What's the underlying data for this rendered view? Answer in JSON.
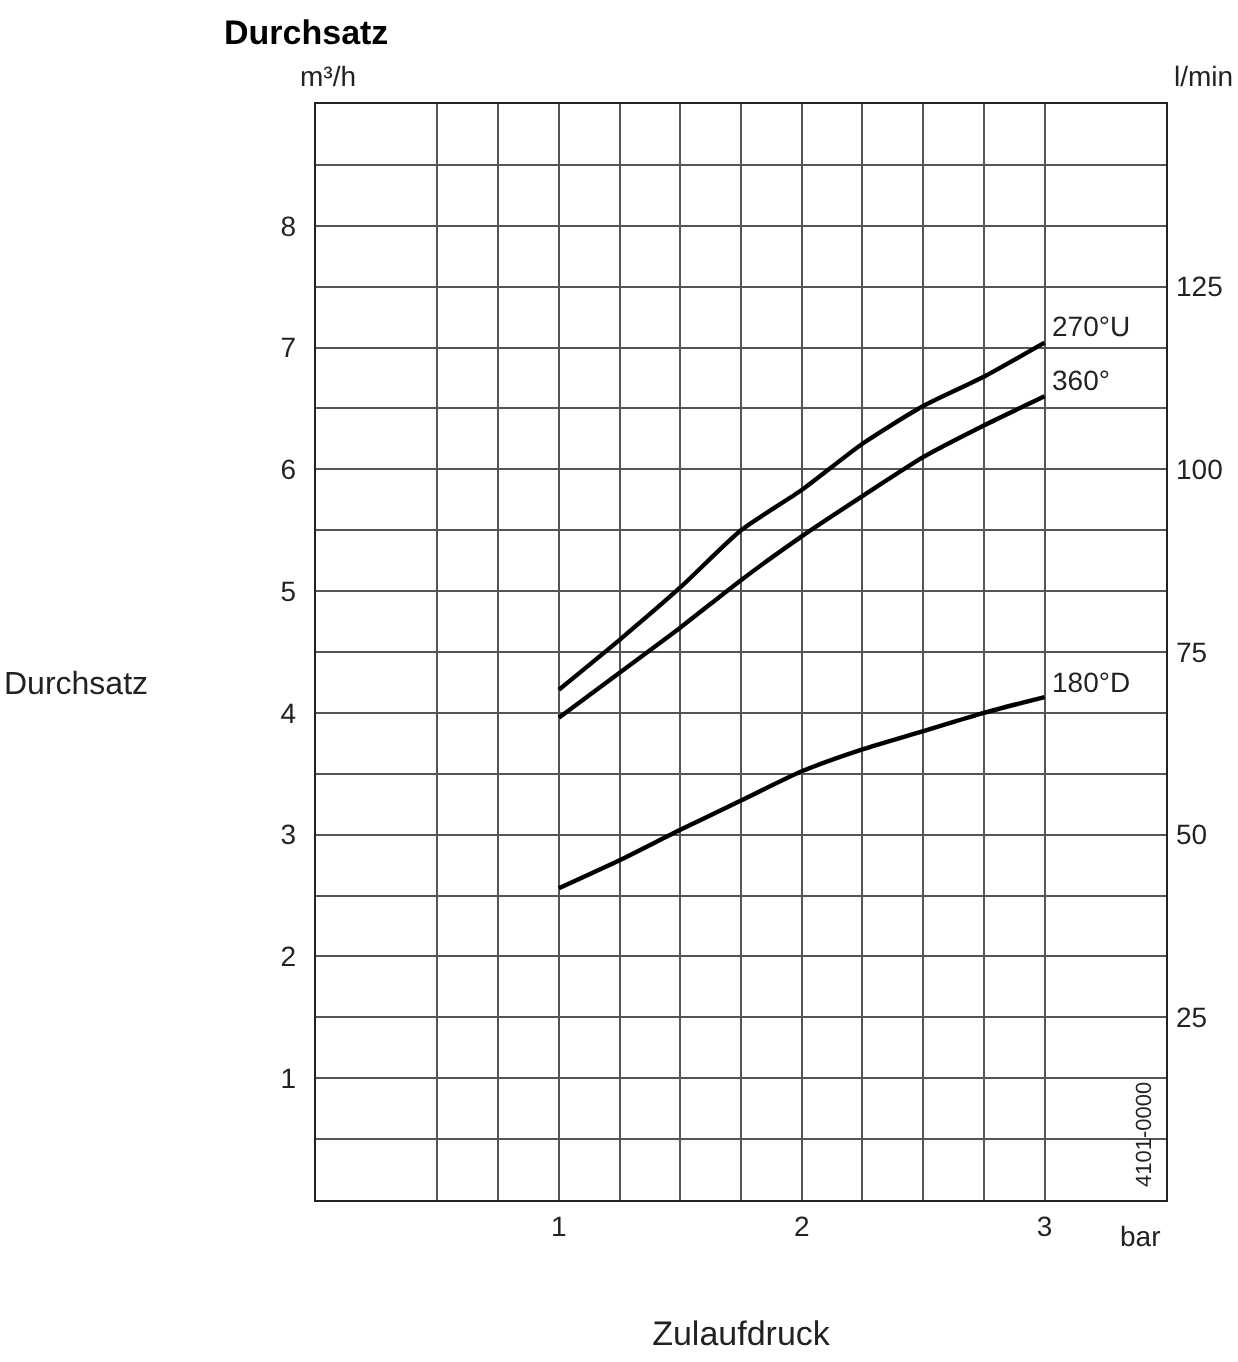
{
  "chart_data": {
    "type": "line",
    "title": "Durchsatz",
    "xlabel": "Zulaufdruck",
    "ylabel": "Durchsatz",
    "y2label": "l/min",
    "annotations": [
      "m³/h",
      "bar",
      "4101-0000"
    ],
    "x": [
      1,
      1.25,
      1.5,
      1.75,
      2,
      2.25,
      2.5,
      2.75,
      3
    ],
    "series": [
      {
        "name": "270°U",
        "color": "#000000",
        "values": [
          4.19,
          4.6,
          5.03,
          5.5,
          5.83,
          6.21,
          6.52,
          6.76,
          7.04
        ]
      },
      {
        "name": "360°",
        "color": "#000000",
        "values": [
          3.96,
          4.33,
          4.7,
          5.09,
          5.45,
          5.78,
          6.1,
          6.36,
          6.6
        ]
      },
      {
        "name": "180°D",
        "color": "#000000",
        "values": [
          2.56,
          2.79,
          3.04,
          3.28,
          3.52,
          3.7,
          3.85,
          4.0,
          4.13
        ]
      }
    ],
    "xlim": [
      0,
      3.5
    ],
    "xticks": [
      {
        "value": 0.5,
        "label": null
      },
      {
        "value": 0.75,
        "label": null
      },
      1,
      {
        "value": 1.25,
        "label": null
      },
      {
        "value": 1.5,
        "label": null
      },
      {
        "value": 1.75,
        "label": null
      },
      2,
      {
        "value": 2.25,
        "label": null
      },
      {
        "value": 2.5,
        "label": null
      },
      {
        "value": 2.75,
        "label": null
      },
      3
    ],
    "ylim": [
      0,
      9
    ],
    "yticks": [
      {
        "value": 0.5,
        "label": null
      },
      1,
      {
        "value": 1.5,
        "label": null
      },
      2,
      {
        "value": 2.5,
        "label": null
      },
      3,
      {
        "value": 3.5,
        "label": null
      },
      4,
      {
        "value": 4.5,
        "label": null
      },
      5,
      {
        "value": 5.5,
        "label": null
      },
      6,
      {
        "value": 6.5,
        "label": null
      },
      7,
      {
        "value": 7.5,
        "label": null
      },
      8,
      {
        "value": 8.5,
        "label": null
      }
    ],
    "y2lim": [
      0,
      150
    ],
    "y2ticks": [
      25,
      50,
      75,
      100,
      125
    ],
    "grid": true,
    "legend": false,
    "marker": "none",
    "line_style": "solid"
  }
}
